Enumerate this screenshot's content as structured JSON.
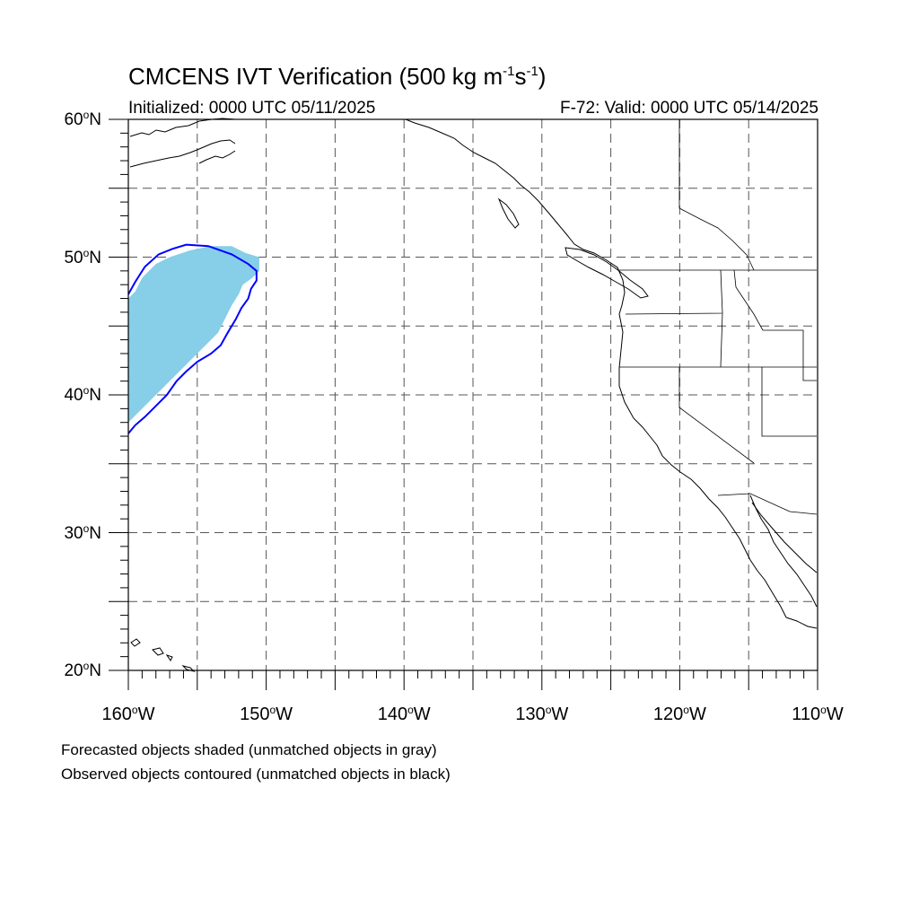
{
  "title": {
    "main": "CMCENS IVT Verification (500 kg m",
    "exp1": "-1",
    "mid": "s",
    "exp2": "-1",
    "end": ")"
  },
  "subtitle": {
    "left": "Initialized: 0000 UTC 05/11/2025",
    "right": "F-72: Valid: 0000 UTC 05/14/2025"
  },
  "axes": {
    "lat_labels": [
      {
        "num": "60",
        "suffix": "N"
      },
      {
        "num": "50",
        "suffix": "N"
      },
      {
        "num": "40",
        "suffix": "N"
      },
      {
        "num": "30",
        "suffix": "N"
      },
      {
        "num": "20",
        "suffix": "N"
      }
    ],
    "lon_labels": [
      {
        "num": "160",
        "suffix": "W"
      },
      {
        "num": "150",
        "suffix": "W"
      },
      {
        "num": "140",
        "suffix": "W"
      },
      {
        "num": "130",
        "suffix": "W"
      },
      {
        "num": "120",
        "suffix": "W"
      },
      {
        "num": "110",
        "suffix": "W"
      }
    ],
    "lat_range": [
      20,
      60
    ],
    "lon_range": [
      -160,
      -110
    ],
    "grid_lats": [
      25,
      30,
      35,
      40,
      45,
      50,
      55
    ],
    "grid_lons": [
      -155,
      -150,
      -145,
      -140,
      -135,
      -130,
      -125,
      -120,
      -115
    ],
    "grid": true,
    "grid_style": "dashed"
  },
  "objects": {
    "forecast_fill_color": "#87CEE8",
    "observed_contour_color": "#0000FF",
    "forecast_object": [
      [
        -160,
        38.0
      ],
      [
        -159.5,
        38.5
      ],
      [
        -159,
        39.0
      ],
      [
        -158.5,
        39.5
      ],
      [
        -158,
        40.0
      ],
      [
        -157.5,
        40.5
      ],
      [
        -157,
        41.0
      ],
      [
        -156.5,
        41.5
      ],
      [
        -156,
        42.0
      ],
      [
        -155.5,
        42.5
      ],
      [
        -155,
        43.0
      ],
      [
        -154.5,
        43.5
      ],
      [
        -154,
        44.0
      ],
      [
        -153.5,
        44.5
      ],
      [
        -153,
        45.5
      ],
      [
        -152.5,
        46.5
      ],
      [
        -152,
        47.3
      ],
      [
        -151.7,
        48.0
      ],
      [
        -151,
        48.5
      ],
      [
        -150.5,
        49.0
      ],
      [
        -150.5,
        50.0
      ],
      [
        -151.5,
        50.3
      ],
      [
        -152.5,
        50.8
      ],
      [
        -154,
        50.8
      ],
      [
        -155.5,
        50.5
      ],
      [
        -157,
        50.0
      ],
      [
        -158,
        49.5
      ],
      [
        -159,
        48.5
      ],
      [
        -159.5,
        47.5
      ],
      [
        -160,
        47.0
      ]
    ],
    "observed_object": [
      [
        -160,
        37.2
      ],
      [
        -159.5,
        37.8
      ],
      [
        -158.8,
        38.4
      ],
      [
        -158,
        39.2
      ],
      [
        -157.2,
        40.0
      ],
      [
        -156.5,
        41.0
      ],
      [
        -155.8,
        41.7
      ],
      [
        -155,
        42.4
      ],
      [
        -154,
        43.0
      ],
      [
        -153.3,
        43.6
      ],
      [
        -152.8,
        44.5
      ],
      [
        -152.2,
        45.5
      ],
      [
        -151.8,
        46.3
      ],
      [
        -151.3,
        47.0
      ],
      [
        -151.1,
        47.7
      ],
      [
        -150.7,
        48.3
      ],
      [
        -150.7,
        49.0
      ],
      [
        -151.3,
        49.5
      ],
      [
        -152.5,
        50.2
      ],
      [
        -154.2,
        50.8
      ],
      [
        -155.8,
        50.9
      ],
      [
        -156.8,
        50.6
      ],
      [
        -157.8,
        50.2
      ],
      [
        -158.8,
        49.3
      ],
      [
        -159.5,
        48.2
      ],
      [
        -160,
        47.3
      ]
    ]
  },
  "footnotes": [
    "Forecasted objects shaded (unmatched objects in gray)",
    "Observed objects contoured (unmatched objects in black)"
  ]
}
